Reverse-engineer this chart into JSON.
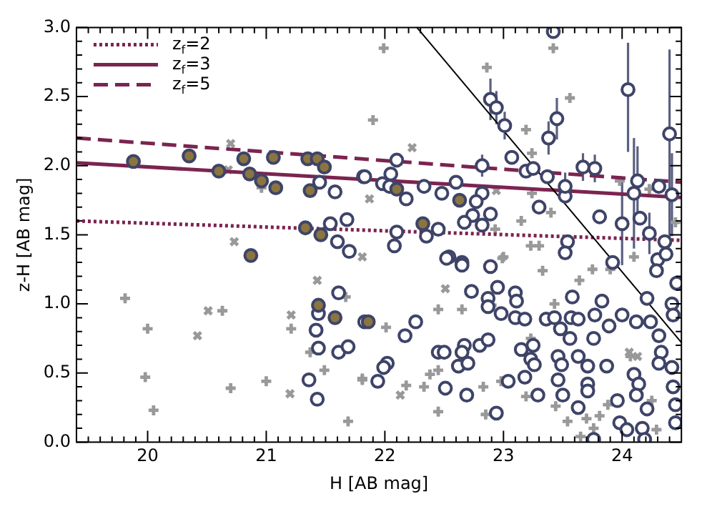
{
  "chart_data": {
    "type": "scatter",
    "xlabel": "H [AB mag]",
    "ylabel": "z-H [AB mag]",
    "xlim": [
      19.4,
      24.5
    ],
    "ylim": [
      0,
      3.0
    ],
    "xticks": [
      {
        "value": 19.5,
        "label": null
      },
      {
        "value": 19.6,
        "label": null
      },
      {
        "value": 19.7,
        "label": null
      },
      {
        "value": 19.8,
        "label": null
      },
      {
        "value": 19.9,
        "label": null
      },
      20,
      {
        "value": 20.1,
        "label": null
      },
      {
        "value": 20.2,
        "label": null
      },
      {
        "value": 20.3,
        "label": null
      },
      {
        "value": 20.4,
        "label": null
      },
      {
        "value": 20.5,
        "label": null
      },
      {
        "value": 20.6,
        "label": null
      },
      {
        "value": 20.7,
        "label": null
      },
      {
        "value": 20.8,
        "label": null
      },
      {
        "value": 20.9,
        "label": null
      },
      21,
      {
        "value": 21.1,
        "label": null
      },
      {
        "value": 21.2,
        "label": null
      },
      {
        "value": 21.3,
        "label": null
      },
      {
        "value": 21.4,
        "label": null
      },
      {
        "value": 21.5,
        "label": null
      },
      {
        "value": 21.6,
        "label": null
      },
      {
        "value": 21.7,
        "label": null
      },
      {
        "value": 21.8,
        "label": null
      },
      {
        "value": 21.9,
        "label": null
      },
      22,
      {
        "value": 22.1,
        "label": null
      },
      {
        "value": 22.2,
        "label": null
      },
      {
        "value": 22.3,
        "label": null
      },
      {
        "value": 22.4,
        "label": null
      },
      {
        "value": 22.5,
        "label": null
      },
      {
        "value": 22.6,
        "label": null
      },
      {
        "value": 22.7,
        "label": null
      },
      {
        "value": 22.8,
        "label": null
      },
      {
        "value": 22.9,
        "label": null
      },
      23,
      {
        "value": 23.1,
        "label": null
      },
      {
        "value": 23.2,
        "label": null
      },
      {
        "value": 23.3,
        "label": null
      },
      {
        "value": 23.4,
        "label": null
      },
      {
        "value": 23.5,
        "label": null
      },
      {
        "value": 23.6,
        "label": null
      },
      {
        "value": 23.7,
        "label": null
      },
      {
        "value": 23.8,
        "label": null
      },
      {
        "value": 23.9,
        "label": null
      },
      24,
      {
        "value": 24.1,
        "label": null
      },
      {
        "value": 24.2,
        "label": null
      },
      {
        "value": 24.3,
        "label": null
      },
      {
        "value": 24.4,
        "label": null
      }
    ],
    "yticks": [
      {
        "value": 0,
        "label": "0.0"
      },
      {
        "value": 0.1,
        "label": null
      },
      {
        "value": 0.2,
        "label": null
      },
      {
        "value": 0.3,
        "label": null
      },
      {
        "value": 0.4,
        "label": null
      },
      0.5,
      {
        "value": 0.6,
        "label": null
      },
      {
        "value": 0.7,
        "label": null
      },
      {
        "value": 0.8,
        "label": null
      },
      {
        "value": 0.9,
        "label": null
      },
      {
        "value": 1,
        "label": "1.0"
      },
      {
        "value": 1.1,
        "label": null
      },
      {
        "value": 1.2,
        "label": null
      },
      {
        "value": 1.3,
        "label": null
      },
      {
        "value": 1.4,
        "label": null
      },
      1.5,
      {
        "value": 1.6,
        "label": null
      },
      {
        "value": 1.7,
        "label": null
      },
      {
        "value": 1.8,
        "label": null
      },
      {
        "value": 1.9,
        "label": null
      },
      {
        "value": 2,
        "label": "2.0"
      },
      {
        "value": 2.1,
        "label": null
      },
      {
        "value": 2.2,
        "label": null
      },
      {
        "value": 2.3,
        "label": null
      },
      {
        "value": 2.4,
        "label": null
      },
      2.5,
      {
        "value": 2.6,
        "label": null
      },
      {
        "value": 2.7,
        "label": null
      },
      {
        "value": 2.8,
        "label": null
      },
      {
        "value": 2.9,
        "label": null
      },
      {
        "value": 3,
        "label": "3.0"
      }
    ],
    "grid": false,
    "legend": "top left",
    "series": [
      {
        "marker": "plus",
        "color": "#999999",
        "x": [
          19.81,
          20.0,
          19.98,
          20.05,
          20.63,
          20.7,
          21.0,
          21.21,
          21.49,
          21.69,
          21.37,
          21.67,
          21.81,
          21.99,
          22.86,
          21.9,
          23.56,
          23.19,
          23.42,
          23.24,
          23.24,
          23.15,
          23.4,
          22.93,
          23.23,
          23.3,
          23.0,
          23.98,
          24.23,
          24.45,
          24.1,
          22.01,
          22.45,
          22.65,
          22.99,
          23.33,
          23.64,
          23.75,
          23.9,
          21.81,
          22.18,
          22.33,
          22.38,
          22.45,
          22.45,
          22.83,
          22.85,
          22.98,
          23.19,
          23.44,
          23.54,
          23.7,
          23.81,
          23.76,
          23.65,
          23.88,
          23.23,
          23.43,
          22.9,
          24.07,
          24.25,
          24.29,
          20.96
        ],
        "values": [
          1.04,
          0.82,
          0.47,
          0.23,
          0.95,
          0.39,
          0.44,
          0.82,
          0.52,
          0.15,
          0.65,
          1.05,
          0.45,
          2.85,
          2.71,
          2.33,
          2.49,
          2.26,
          2.85,
          2.09,
          1.8,
          1.6,
          1.66,
          1.54,
          1.42,
          1.42,
          1.34,
          1.89,
          1.83,
          1.59,
          1.34,
          0.83,
          0.96,
          0.96,
          1.33,
          1.24,
          1.17,
          1.25,
          1.25,
          0.46,
          0.41,
          0.4,
          0.49,
          0.52,
          0.22,
          0.4,
          0.2,
          0.44,
          0.33,
          0.26,
          0.15,
          0.17,
          0.19,
          0.1,
          0.04,
          0.27,
          0.75,
          1.0,
          0.99,
          0.62,
          0.3,
          0.09,
          1.84
        ]
      },
      {
        "marker": "cross",
        "color": "#999999",
        "x": [
          20.7,
          20.68,
          20.73,
          22.23,
          21.87,
          21.81,
          22.94,
          20.42,
          20.51,
          21.21,
          21.43,
          21.2,
          22.51,
          22.13,
          24.06,
          24.13
        ],
        "values": [
          2.16,
          1.97,
          1.45,
          2.13,
          1.76,
          1.34,
          1.82,
          0.77,
          0.95,
          0.92,
          1.17,
          0.35,
          1.11,
          0.34,
          0.65,
          0.62
        ]
      },
      {
        "type": "line",
        "name": "z$_{f}$=2",
        "line_style": "dotted",
        "color": "#7b2450",
        "x": [
          19.4,
          24.5
        ],
        "values": [
          1.6,
          1.46
        ]
      },
      {
        "type": "line",
        "name": "z$_{f}$=3",
        "line_style": "solid",
        "color": "#7b2450",
        "x": [
          19.4,
          24.5
        ],
        "values": [
          2.02,
          1.77
        ]
      },
      {
        "type": "line",
        "name": "z$_{f}$=5",
        "line_style": "dashed",
        "color": "#7b2450",
        "x": [
          19.4,
          24.5
        ],
        "values": [
          2.2,
          1.88
        ]
      },
      {
        "type": "line",
        "line_style": "solid",
        "color": "#000000",
        "x": [
          22.27,
          24.5
        ],
        "values": [
          3.0,
          0.72
        ]
      },
      {
        "marker": "circle",
        "color": "#3e4468",
        "x": [
          21.45,
          21.58,
          21.82,
          21.54,
          21.68,
          21.6,
          21.7,
          21.61,
          21.44,
          21.42,
          21.44,
          21.61,
          21.69,
          21.36,
          21.43,
          21.83,
          21.83,
          21.98,
          22.05,
          22.1,
          22.04,
          22.18,
          22.33,
          22.48,
          22.6,
          22.82,
          22.77,
          22.89,
          22.74,
          22.67,
          22.82,
          22.1,
          22.08,
          22.35,
          22.45,
          23.07,
          23.19,
          23.25,
          23.37,
          23.42,
          23.52,
          23.3,
          23.81,
          24.15,
          24.31,
          24.36,
          23.54,
          23.52,
          23.92,
          24.3,
          24.37,
          22.54,
          22.65,
          22.52,
          22.65,
          22.89,
          22.73,
          22.87,
          22.87,
          22.95,
          22.98,
          23.1,
          23.11,
          23.1,
          23.18,
          22.26,
          22.17,
          22.45,
          22.5,
          22.02,
          21.99,
          21.94,
          22.51,
          22.62,
          22.7,
          22.67,
          22.65,
          22.8,
          22.87,
          22.69,
          22.94,
          23.04,
          23.15,
          23.25,
          23.23,
          23.26,
          23.18,
          23.29,
          23.36,
          23.43,
          23.48,
          23.57,
          23.58,
          23.63,
          23.56,
          23.46,
          23.49,
          23.46,
          23.5,
          23.63,
          23.63,
          23.71,
          23.71,
          23.71,
          23.76,
          23.77,
          23.83,
          23.87,
          23.89,
          24.0,
          24.12,
          24.24,
          24.21,
          24.31,
          24.33,
          24.29,
          24.46,
          24.42,
          24.43,
          24.1,
          24.14,
          24.12,
          24.21,
          23.96,
          23.98,
          24.04,
          24.17,
          24.19,
          23.76,
          24.31,
          24.42,
          24.43,
          24.45,
          24.45
        ],
        "values": [
          1.88,
          1.81,
          1.92,
          1.58,
          1.61,
          1.45,
          1.38,
          1.08,
          0.93,
          0.81,
          0.68,
          0.65,
          0.69,
          0.45,
          0.31,
          0.87,
          1.92,
          1.87,
          1.94,
          2.04,
          1.85,
          1.76,
          1.85,
          1.8,
          1.88,
          1.8,
          1.74,
          1.65,
          1.64,
          1.59,
          1.57,
          1.52,
          1.42,
          1.49,
          1.54,
          2.06,
          1.96,
          1.98,
          1.92,
          2.97,
          1.78,
          1.7,
          1.63,
          1.62,
          1.85,
          1.45,
          1.45,
          1.37,
          1.3,
          1.32,
          1.36,
          1.34,
          1.3,
          1.33,
          1.28,
          1.27,
          1.09,
          1.04,
          0.98,
          1.12,
          0.93,
          1.08,
          1.02,
          0.9,
          0.89,
          0.87,
          0.77,
          0.65,
          0.65,
          0.57,
          0.54,
          0.44,
          0.39,
          0.55,
          0.57,
          0.7,
          0.65,
          0.7,
          0.74,
          0.34,
          0.21,
          0.44,
          0.67,
          0.7,
          0.6,
          0.56,
          0.47,
          0.34,
          0.89,
          0.9,
          0.82,
          0.9,
          1.05,
          0.89,
          0.75,
          0.62,
          0.56,
          0.45,
          0.34,
          0.25,
          0.62,
          0.55,
          0.42,
          0.37,
          0.75,
          0.92,
          1.02,
          0.55,
          0.84,
          0.92,
          0.87,
          0.87,
          1.04,
          0.77,
          0.65,
          1.24,
          1.15,
          1.0,
          0.92,
          0.49,
          0.42,
          0.34,
          0.24,
          0.3,
          0.14,
          0.09,
          0.1,
          0.02,
          0.02,
          0.57,
          0.54,
          0.4,
          0.27,
          0.14
        ]
      },
      {
        "marker": "circle",
        "color": "#3e4468",
        "x": [
          22.89,
          22.94,
          23.01,
          23.38,
          23.45,
          24.05,
          24.4,
          24.1,
          24.0,
          24.13,
          24.42,
          23.52,
          23.67,
          23.77,
          22.82,
          24.23
        ],
        "values": [
          2.48,
          2.42,
          2.29,
          2.2,
          2.34,
          2.55,
          2.23,
          1.8,
          1.58,
          1.89,
          1.79,
          1.85,
          1.99,
          1.98,
          2.0,
          1.51
        ],
        "errors": [
          0.15,
          0.12,
          0.1,
          0.12,
          0.15,
          [
            2.1,
            2.89
          ],
          [
            1.44,
            2.84
          ],
          0.4,
          0.3,
          0.25,
          0.3,
          0.1,
          0.1,
          0.1,
          0.08,
          0.15
        ]
      },
      {
        "marker": "circle",
        "color": "#8a7440",
        "x": [
          19.88,
          20.35,
          20.6,
          20.81,
          20.86,
          20.96,
          21.08,
          21.06,
          21.35,
          21.43,
          21.49,
          21.37,
          21.33,
          21.46,
          20.87,
          21.44,
          21.58,
          22.1,
          22.63,
          22.32,
          21.86
        ],
        "values": [
          2.03,
          2.07,
          1.96,
          2.05,
          1.94,
          1.89,
          1.84,
          2.06,
          2.05,
          2.05,
          1.99,
          1.82,
          1.55,
          1.5,
          1.35,
          0.99,
          0.9,
          1.83,
          1.75,
          1.58,
          0.87
        ]
      }
    ]
  }
}
